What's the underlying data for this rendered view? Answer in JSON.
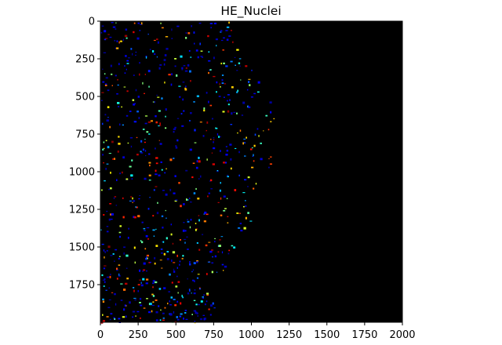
{
  "chart_data": {
    "type": "heatmap",
    "title": "HE_Nuclei",
    "xlabel": "",
    "ylabel": "",
    "xlim": [
      0,
      2000
    ],
    "ylim": [
      2000,
      0
    ],
    "x_ticks": [
      0,
      250,
      500,
      750,
      1000,
      1250,
      1500,
      1750,
      2000
    ],
    "y_ticks": [
      0,
      250,
      500,
      750,
      1000,
      1250,
      1500,
      1750
    ],
    "background_color": "#000000",
    "colormap": "jet",
    "grid": false,
    "legend": "none",
    "description_of_content": "labeled nuclei mask; nuclei densely scattered in a region roughly spanning x 0–1180 with a lobed right boundary, empty (label 0) elsewhere",
    "tissue_boundary": [
      {
        "y": 0,
        "x_max": 870
      },
      {
        "y": 200,
        "x_max": 930
      },
      {
        "y": 400,
        "x_max": 1080
      },
      {
        "y": 600,
        "x_max": 1160
      },
      {
        "y": 800,
        "x_max": 1150
      },
      {
        "y": 1000,
        "x_max": 1130
      },
      {
        "y": 1200,
        "x_max": 1060
      },
      {
        "y": 1400,
        "x_max": 970
      },
      {
        "y": 1600,
        "x_max": 850
      },
      {
        "y": 1800,
        "x_max": 760
      },
      {
        "y": 2000,
        "x_max": 760
      }
    ]
  }
}
